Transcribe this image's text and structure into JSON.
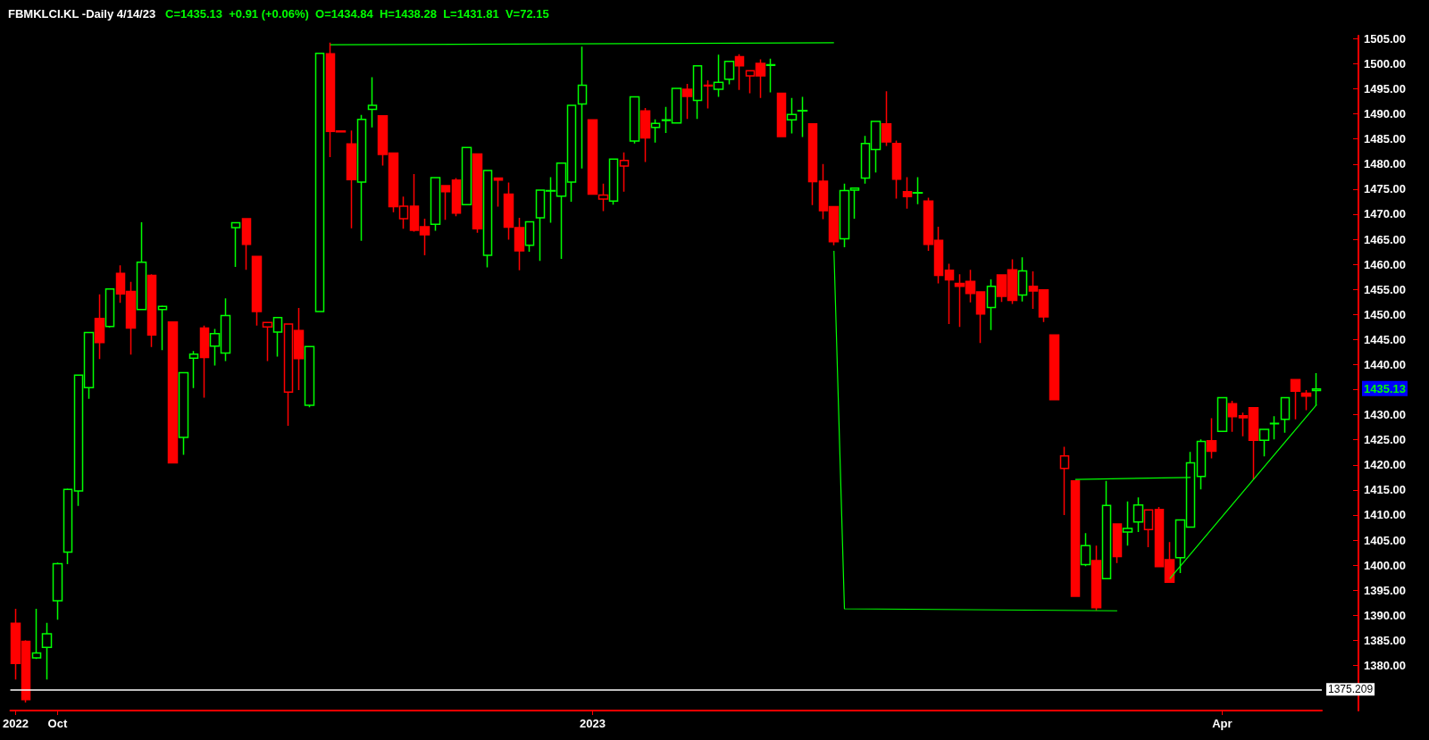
{
  "chart_data": {
    "type": "candlestick",
    "title": "FBMKLCI.KL -Daily 4/14/23",
    "subtitle": "C=1435.13  +0.91 (+0.06%)  O=1434.84  H=1438.28  L=1431.81  V=72.15",
    "categories": [
      "2022",
      null,
      null,
      null,
      "Oct",
      null,
      null,
      null,
      null,
      null,
      null,
      null,
      null,
      null,
      null,
      null,
      null,
      null,
      null,
      null,
      null,
      null,
      null,
      null,
      null,
      null,
      null,
      null,
      null,
      null,
      null,
      null,
      null,
      null,
      null,
      null,
      null,
      null,
      null,
      null,
      null,
      null,
      null,
      null,
      null,
      null,
      null,
      null,
      null,
      null,
      null,
      null,
      null,
      null,
      null,
      "2023",
      null,
      null,
      null,
      null,
      null,
      null,
      null,
      null,
      null,
      null,
      null,
      null,
      null,
      null,
      null,
      null,
      null,
      null,
      null,
      null,
      null,
      null,
      null,
      null,
      null,
      null,
      null,
      null,
      null,
      null,
      null,
      null,
      null,
      null,
      null,
      null,
      null,
      null,
      null,
      null,
      null,
      null,
      null,
      null,
      null,
      null,
      null,
      null,
      null,
      null,
      null,
      null,
      null,
      null,
      null,
      null,
      null,
      null,
      null,
      "Apr",
      null,
      null,
      null,
      null,
      null,
      null,
      null,
      null,
      null
    ],
    "ohlc": [
      [
        1388.4,
        1391.3,
        1377.2,
        1380.4
      ],
      [
        1384.8,
        1385.0,
        1372.6,
        1373.2
      ],
      [
        1381.5,
        1391.3,
        1381.3,
        1382.5
      ],
      [
        1383.6,
        1388.5,
        1377.2,
        1386.3
      ],
      [
        1392.9,
        1400.5,
        1389.1,
        1400.3
      ],
      [
        1402.6,
        1415.3,
        1400.2,
        1415.1
      ],
      [
        1414.8,
        1438.0,
        1411.8,
        1437.9
      ],
      [
        1435.4,
        1446.5,
        1433.2,
        1446.4
      ],
      [
        1449.2,
        1454.0,
        1441.1,
        1444.4
      ],
      [
        1447.6,
        1455.2,
        1447.4,
        1455.1
      ],
      [
        1458.2,
        1459.8,
        1452.3,
        1454.1
      ],
      [
        1454.6,
        1456.5,
        1442.0,
        1447.3
      ],
      [
        1451.0,
        1468.4,
        1450.9,
        1460.4
      ],
      [
        1457.8,
        1458.0,
        1443.5,
        1445.9
      ],
      [
        1451.0,
        1451.8,
        1442.9,
        1451.6
      ],
      [
        1448.5,
        1448.6,
        1420.3,
        1420.4
      ],
      [
        1425.5,
        1438.5,
        1422.0,
        1438.4
      ],
      [
        1441.3,
        1442.7,
        1435.3,
        1442.1
      ],
      [
        1447.3,
        1447.8,
        1433.4,
        1441.4
      ],
      [
        1443.7,
        1447.1,
        1439.8,
        1446.2
      ],
      [
        1442.3,
        1453.2,
        1440.7,
        1449.8
      ],
      [
        1467.3,
        1468.4,
        1459.5,
        1468.3
      ],
      [
        1469.1,
        1469.2,
        1458.9,
        1464.0
      ],
      [
        1461.6,
        1461.7,
        1447.8,
        1450.6
      ],
      [
        1447.5,
        1448.5,
        1440.7,
        1448.4
      ],
      [
        1446.5,
        1449.5,
        1441.6,
        1449.4
      ],
      [
        1434.5,
        1448.2,
        1427.8,
        1448.1
      ],
      [
        1446.8,
        1451.3,
        1434.9,
        1441.2
      ],
      [
        1431.9,
        1443.7,
        1431.5,
        1443.6
      ],
      [
        1450.6,
        1502.2,
        1450.5,
        1502.1
      ],
      [
        1502.0,
        1504.2,
        1481.4,
        1486.5
      ],
      [
        1486.6,
        1486.7,
        1486.3,
        1486.4
      ],
      [
        1484.0,
        1486.7,
        1467.2,
        1476.9
      ],
      [
        1476.4,
        1489.8,
        1464.7,
        1488.9
      ],
      [
        1490.9,
        1497.3,
        1487.3,
        1491.7
      ],
      [
        1489.6,
        1489.7,
        1479.7,
        1481.9
      ],
      [
        1482.2,
        1482.3,
        1470.4,
        1471.5
      ],
      [
        1469.1,
        1473.5,
        1467.1,
        1471.6
      ],
      [
        1471.6,
        1478.0,
        1466.5,
        1466.8
      ],
      [
        1467.5,
        1469.1,
        1461.8,
        1465.9
      ],
      [
        1468.0,
        1477.4,
        1466.7,
        1477.3
      ],
      [
        1475.7,
        1475.8,
        1468.9,
        1474.5
      ],
      [
        1476.8,
        1477.2,
        1469.6,
        1470.2
      ],
      [
        1471.9,
        1483.4,
        1471.8,
        1483.3
      ],
      [
        1482.0,
        1482.1,
        1466.3,
        1467.1
      ],
      [
        1461.8,
        1478.8,
        1459.4,
        1478.7
      ],
      [
        1477.2,
        1477.3,
        1471.5,
        1476.8
      ],
      [
        1474.0,
        1476.3,
        1464.9,
        1467.4
      ],
      [
        1467.3,
        1469.3,
        1458.8,
        1462.7
      ],
      [
        1463.8,
        1468.6,
        1462.5,
        1468.5
      ],
      [
        1469.3,
        1474.9,
        1460.7,
        1474.8
      ],
      [
        1474.6,
        1477.4,
        1468.3,
        1474.7
      ],
      [
        1473.6,
        1480.3,
        1461.1,
        1480.2
      ],
      [
        1476.4,
        1491.8,
        1472.5,
        1491.7
      ],
      [
        1492.0,
        1503.4,
        1479.1,
        1495.7
      ],
      [
        1488.8,
        1488.9,
        1473.9,
        1474.0
      ],
      [
        1473.0,
        1476.1,
        1470.6,
        1473.8
      ],
      [
        1472.6,
        1481.1,
        1471.9,
        1481.0
      ],
      [
        1479.6,
        1482.3,
        1474.5,
        1480.7
      ],
      [
        1484.6,
        1493.5,
        1484.1,
        1493.4
      ],
      [
        1490.6,
        1491.2,
        1480.4,
        1485.2
      ],
      [
        1487.3,
        1488.9,
        1484.3,
        1488.1
      ],
      [
        1488.7,
        1491.4,
        1486.2,
        1488.8
      ],
      [
        1488.2,
        1495.2,
        1488.1,
        1495.1
      ],
      [
        1494.9,
        1496.0,
        1489.0,
        1493.5
      ],
      [
        1492.7,
        1499.7,
        1489.0,
        1499.6
      ],
      [
        1495.7,
        1496.7,
        1491.1,
        1495.6
      ],
      [
        1494.9,
        1501.8,
        1493.4,
        1496.3
      ],
      [
        1496.9,
        1500.6,
        1495.9,
        1500.5
      ],
      [
        1501.4,
        1501.9,
        1494.8,
        1499.6
      ],
      [
        1497.6,
        1498.7,
        1494.1,
        1498.6
      ],
      [
        1500.1,
        1500.9,
        1493.2,
        1497.6
      ],
      [
        1499.7,
        1501.0,
        1494.3,
        1499.8
      ],
      [
        1494.1,
        1494.2,
        1485.4,
        1485.5
      ],
      [
        1488.8,
        1493.2,
        1486.1,
        1489.9
      ],
      [
        1490.6,
        1493.4,
        1485.4,
        1490.7
      ],
      [
        1488.0,
        1488.1,
        1471.8,
        1476.5
      ],
      [
        1476.6,
        1480.0,
        1469.0,
        1470.7
      ],
      [
        1471.5,
        1471.6,
        1463.8,
        1464.5
      ],
      [
        1465.1,
        1476.1,
        1463.4,
        1474.7
      ],
      [
        1474.8,
        1475.3,
        1469.1,
        1475.2
      ],
      [
        1477.2,
        1485.6,
        1476.1,
        1484.1
      ],
      [
        1482.9,
        1488.6,
        1478.3,
        1488.5
      ],
      [
        1488.0,
        1494.5,
        1483.6,
        1484.4
      ],
      [
        1484.1,
        1484.7,
        1473.1,
        1477.0
      ],
      [
        1474.5,
        1477.4,
        1471.1,
        1473.5
      ],
      [
        1474.2,
        1477.4,
        1472.0,
        1474.3
      ],
      [
        1472.6,
        1473.3,
        1462.7,
        1464.0
      ],
      [
        1464.8,
        1467.5,
        1456.2,
        1457.8
      ],
      [
        1458.8,
        1460.1,
        1448.1,
        1456.9
      ],
      [
        1456.2,
        1458.0,
        1447.5,
        1455.6
      ],
      [
        1456.6,
        1458.9,
        1452.4,
        1454.2
      ],
      [
        1454.5,
        1454.6,
        1444.3,
        1450.1
      ],
      [
        1451.4,
        1457.0,
        1446.9,
        1455.6
      ],
      [
        1457.9,
        1458.0,
        1452.5,
        1453.6
      ],
      [
        1458.9,
        1461.0,
        1452.1,
        1452.8
      ],
      [
        1453.9,
        1461.4,
        1452.6,
        1458.7
      ],
      [
        1455.6,
        1458.6,
        1451.1,
        1454.7
      ],
      [
        1454.9,
        1455.0,
        1448.5,
        1449.5
      ],
      [
        1445.9,
        1446.0,
        1432.9,
        1433.0
      ],
      [
        1419.3,
        1423.6,
        1410.0,
        1421.8
      ],
      [
        1416.8,
        1416.9,
        1393.7,
        1393.8
      ],
      [
        1400.1,
        1406.4,
        1399.8,
        1403.9
      ],
      [
        1400.9,
        1403.9,
        1391.0,
        1391.5
      ],
      [
        1397.3,
        1416.8,
        1397.2,
        1411.9
      ],
      [
        1408.2,
        1408.3,
        1400.4,
        1401.7
      ],
      [
        1406.6,
        1412.7,
        1403.9,
        1407.3
      ],
      [
        1408.6,
        1413.5,
        1406.6,
        1412.0
      ],
      [
        1407.1,
        1411.1,
        1403.6,
        1411.0
      ],
      [
        1411.1,
        1411.6,
        1399.6,
        1399.7
      ],
      [
        1401.1,
        1404.6,
        1396.5,
        1396.6
      ],
      [
        1401.5,
        1409.1,
        1398.4,
        1409.0
      ],
      [
        1407.6,
        1422.6,
        1407.5,
        1420.4
      ],
      [
        1417.7,
        1425.1,
        1415.1,
        1424.7
      ],
      [
        1424.8,
        1429.3,
        1421.3,
        1422.7
      ],
      [
        1426.7,
        1433.5,
        1426.6,
        1433.4
      ],
      [
        1432.2,
        1432.8,
        1426.6,
        1429.6
      ],
      [
        1429.8,
        1430.4,
        1425.7,
        1429.4
      ],
      [
        1431.4,
        1431.5,
        1417.1,
        1424.9
      ],
      [
        1424.9,
        1427.2,
        1421.7,
        1427.1
      ],
      [
        1428.2,
        1429.7,
        1425.1,
        1428.3
      ],
      [
        1429.1,
        1433.5,
        1426.4,
        1433.4
      ],
      [
        1437.0,
        1437.1,
        1429.1,
        1434.7
      ],
      [
        1434.3,
        1434.9,
        1430.9,
        1433.7
      ],
      [
        1434.84,
        1438.28,
        1431.81,
        1435.13
      ]
    ],
    "colors": [
      "#ff0000",
      "#ff0000",
      "#00ff00",
      "#00ff00",
      "#00ff00",
      "#00ff00",
      "#00ff00",
      "#00ff00",
      "#ff0000",
      "#00ff00",
      "#ff0000",
      "#ff0000",
      "#00ff00",
      "#ff0000",
      "#00ff00",
      "#ff0000",
      "#00ff00",
      "#00ff00",
      "#ff0000",
      "#00ff00",
      "#00ff00",
      "#00ff00",
      "#ff0000",
      "#ff0000",
      "#ff0000",
      "#00ff00",
      "#ff0000",
      "#ff0000",
      "#00ff00",
      "#00ff00",
      "#ff0000",
      "#ff0000",
      "#ff0000",
      "#00ff00",
      "#00ff00",
      "#ff0000",
      "#ff0000",
      "#ff0000",
      "#ff0000",
      "#ff0000",
      "#00ff00",
      "#ff0000",
      "#ff0000",
      "#00ff00",
      "#ff0000",
      "#00ff00",
      "#ff0000",
      "#ff0000",
      "#ff0000",
      "#00ff00",
      "#00ff00",
      "#00ff00",
      "#00ff00",
      "#00ff00",
      "#00ff00",
      "#ff0000",
      "#ff0000",
      "#00ff00",
      "#ff0000",
      "#00ff00",
      "#ff0000",
      "#00ff00",
      "#00ff00",
      "#00ff00",
      "#ff0000",
      "#00ff00",
      "#ff0000",
      "#00ff00",
      "#00ff00",
      "#ff0000",
      "#ff0000",
      "#ff0000",
      "#00ff00",
      "#ff0000",
      "#00ff00",
      "#00ff00",
      "#ff0000",
      "#ff0000",
      "#ff0000",
      "#00ff00",
      "#00ff00",
      "#00ff00",
      "#00ff00",
      "#ff0000",
      "#ff0000",
      "#ff0000",
      "#00ff00",
      "#ff0000",
      "#ff0000",
      "#ff0000",
      "#ff0000",
      "#ff0000",
      "#ff0000",
      "#00ff00",
      "#ff0000",
      "#ff0000",
      "#00ff00",
      "#ff0000",
      "#ff0000",
      "#ff0000",
      "#ff0000",
      "#ff0000",
      "#00ff00",
      "#ff0000",
      "#00ff00",
      "#ff0000",
      "#00ff00",
      "#00ff00",
      "#ff0000",
      "#ff0000",
      "#ff0000",
      "#00ff00",
      "#00ff00",
      "#00ff00",
      "#ff0000",
      "#00ff00",
      "#ff0000",
      "#ff0000",
      "#ff0000",
      "#00ff00",
      "#00ff00",
      "#00ff00",
      "#ff0000",
      "#ff0000",
      "#00ff00"
    ],
    "series": [
      {
        "type": "line",
        "color": "#00ff00",
        "values": [
          null,
          null,
          null,
          null,
          null,
          null,
          null,
          null,
          null,
          null,
          null,
          null,
          null,
          null,
          null,
          null,
          null,
          null,
          null,
          null,
          null,
          null,
          null,
          null,
          null,
          null,
          null,
          null,
          null,
          null,
          1503.8,
          null,
          null,
          null,
          null,
          null,
          null,
          null,
          null,
          null,
          null,
          null,
          null,
          null,
          null,
          null,
          null,
          null,
          null,
          null,
          null,
          null,
          null,
          null,
          null,
          null,
          null,
          null,
          null,
          null,
          null,
          null,
          null,
          null,
          null,
          null,
          null,
          null,
          null,
          null,
          null,
          null,
          null,
          null,
          null,
          null,
          null,
          null,
          1504.2,
          null,
          null,
          null,
          null,
          null,
          null,
          null,
          null,
          null,
          null,
          null,
          null,
          null,
          null,
          null,
          null,
          null,
          null,
          null,
          null,
          null,
          null,
          null,
          null,
          null,
          null,
          null,
          null,
          null,
          null,
          null,
          null,
          null,
          null,
          null,
          null,
          null,
          null,
          null,
          null,
          null,
          null,
          null,
          null,
          null,
          null
        ]
      },
      {
        "type": "line",
        "color": "#00ff00",
        "values": [
          null,
          null,
          null,
          null,
          null,
          null,
          null,
          null,
          null,
          null,
          null,
          null,
          null,
          null,
          null,
          null,
          null,
          null,
          null,
          null,
          null,
          null,
          null,
          null,
          null,
          null,
          null,
          null,
          null,
          null,
          null,
          null,
          null,
          null,
          null,
          null,
          null,
          null,
          null,
          null,
          null,
          null,
          null,
          null,
          null,
          null,
          null,
          null,
          null,
          null,
          null,
          null,
          null,
          null,
          null,
          null,
          null,
          null,
          null,
          null,
          null,
          null,
          null,
          null,
          null,
          null,
          null,
          null,
          null,
          null,
          null,
          null,
          null,
          null,
          null,
          null,
          null,
          null,
          1462.7,
          1391.3,
          null,
          null,
          null,
          null,
          null,
          null,
          null,
          null,
          null,
          null,
          null,
          null,
          null,
          null,
          null,
          null,
          null,
          null,
          null,
          null,
          null,
          null,
          null,
          null,
          null,
          1390.9,
          null,
          null,
          null,
          null,
          null,
          null,
          null,
          null,
          null,
          null,
          null,
          null,
          null,
          null,
          null,
          null,
          null,
          null,
          null
        ]
      },
      {
        "type": "line",
        "color": "#00ff00",
        "values": [
          null,
          null,
          null,
          null,
          null,
          null,
          null,
          null,
          null,
          null,
          null,
          null,
          null,
          null,
          null,
          null,
          null,
          null,
          null,
          null,
          null,
          null,
          null,
          null,
          null,
          null,
          null,
          null,
          null,
          null,
          null,
          null,
          null,
          null,
          null,
          null,
          null,
          null,
          null,
          null,
          null,
          null,
          null,
          null,
          null,
          null,
          null,
          null,
          null,
          null,
          null,
          null,
          null,
          null,
          null,
          null,
          null,
          null,
          null,
          null,
          null,
          null,
          null,
          null,
          null,
          null,
          null,
          null,
          null,
          null,
          null,
          null,
          null,
          null,
          null,
          null,
          null,
          null,
          null,
          null,
          null,
          null,
          null,
          null,
          null,
          null,
          null,
          null,
          null,
          null,
          null,
          null,
          null,
          null,
          null,
          null,
          null,
          null,
          null,
          null,
          null,
          1417.1,
          null,
          null,
          null,
          null,
          null,
          null,
          null,
          null,
          null,
          null,
          1417.5,
          null,
          null,
          null,
          null,
          null,
          null,
          null,
          null,
          null,
          null,
          null,
          null
        ]
      },
      {
        "type": "line",
        "color": "#00ff00",
        "values": [
          null,
          null,
          null,
          null,
          null,
          null,
          null,
          null,
          null,
          null,
          null,
          null,
          null,
          null,
          null,
          null,
          null,
          null,
          null,
          null,
          null,
          null,
          null,
          null,
          null,
          null,
          null,
          null,
          null,
          null,
          null,
          null,
          null,
          null,
          null,
          null,
          null,
          null,
          null,
          null,
          null,
          null,
          null,
          null,
          null,
          null,
          null,
          null,
          null,
          null,
          null,
          null,
          null,
          null,
          null,
          null,
          null,
          null,
          null,
          null,
          null,
          null,
          null,
          null,
          null,
          null,
          null,
          null,
          null,
          null,
          null,
          null,
          null,
          null,
          null,
          null,
          null,
          null,
          null,
          null,
          null,
          null,
          null,
          null,
          null,
          null,
          null,
          null,
          null,
          null,
          null,
          null,
          null,
          null,
          null,
          null,
          null,
          null,
          null,
          null,
          null,
          null,
          null,
          null,
          null,
          null,
          null,
          null,
          null,
          null,
          1397.3,
          null,
          null,
          null,
          null,
          null,
          null,
          null,
          null,
          null,
          null,
          null,
          null,
          null,
          1432.0
        ]
      }
    ],
    "ylim": [
      1371,
      1505.6
    ],
    "yticks": [
      {
        "value": 1380,
        "label": "1380.00"
      },
      {
        "value": 1385,
        "label": "1385.00"
      },
      {
        "value": 1390,
        "label": "1390.00"
      },
      {
        "value": 1395,
        "label": "1395.00"
      },
      {
        "value": 1400,
        "label": "1400.00"
      },
      {
        "value": 1405,
        "label": "1405.00"
      },
      {
        "value": 1410,
        "label": "1410.00"
      },
      {
        "value": 1415,
        "label": "1415.00"
      },
      {
        "value": 1420,
        "label": "1420.00"
      },
      {
        "value": 1425,
        "label": "1425.00"
      },
      {
        "value": 1430,
        "label": "1430.00"
      },
      {
        "value": 1435,
        "label": null
      },
      {
        "value": 1440,
        "label": "1440.00"
      },
      {
        "value": 1445,
        "label": "1445.00"
      },
      {
        "value": 1450,
        "label": "1450.00"
      },
      {
        "value": 1455,
        "label": "1455.00"
      },
      {
        "value": 1460,
        "label": "1460.00"
      },
      {
        "value": 1465,
        "label": "1465.00"
      },
      {
        "value": 1470,
        "label": "1470.00"
      },
      {
        "value": 1475,
        "label": "1475.00"
      },
      {
        "value": 1480,
        "label": "1480.00"
      },
      {
        "value": 1485,
        "label": "1485.00"
      },
      {
        "value": 1490,
        "label": "1490.00"
      },
      {
        "value": 1495,
        "label": "1495.00"
      },
      {
        "value": 1500,
        "label": "1500.00"
      },
      {
        "value": 1505,
        "label": "1505.00"
      }
    ],
    "ref_lines": [
      {
        "axis": "y",
        "value": 1375.209,
        "label": "1375.209",
        "color": "#ffffff"
      }
    ],
    "annotations": [
      "1435.13"
    ],
    "grid": false
  }
}
